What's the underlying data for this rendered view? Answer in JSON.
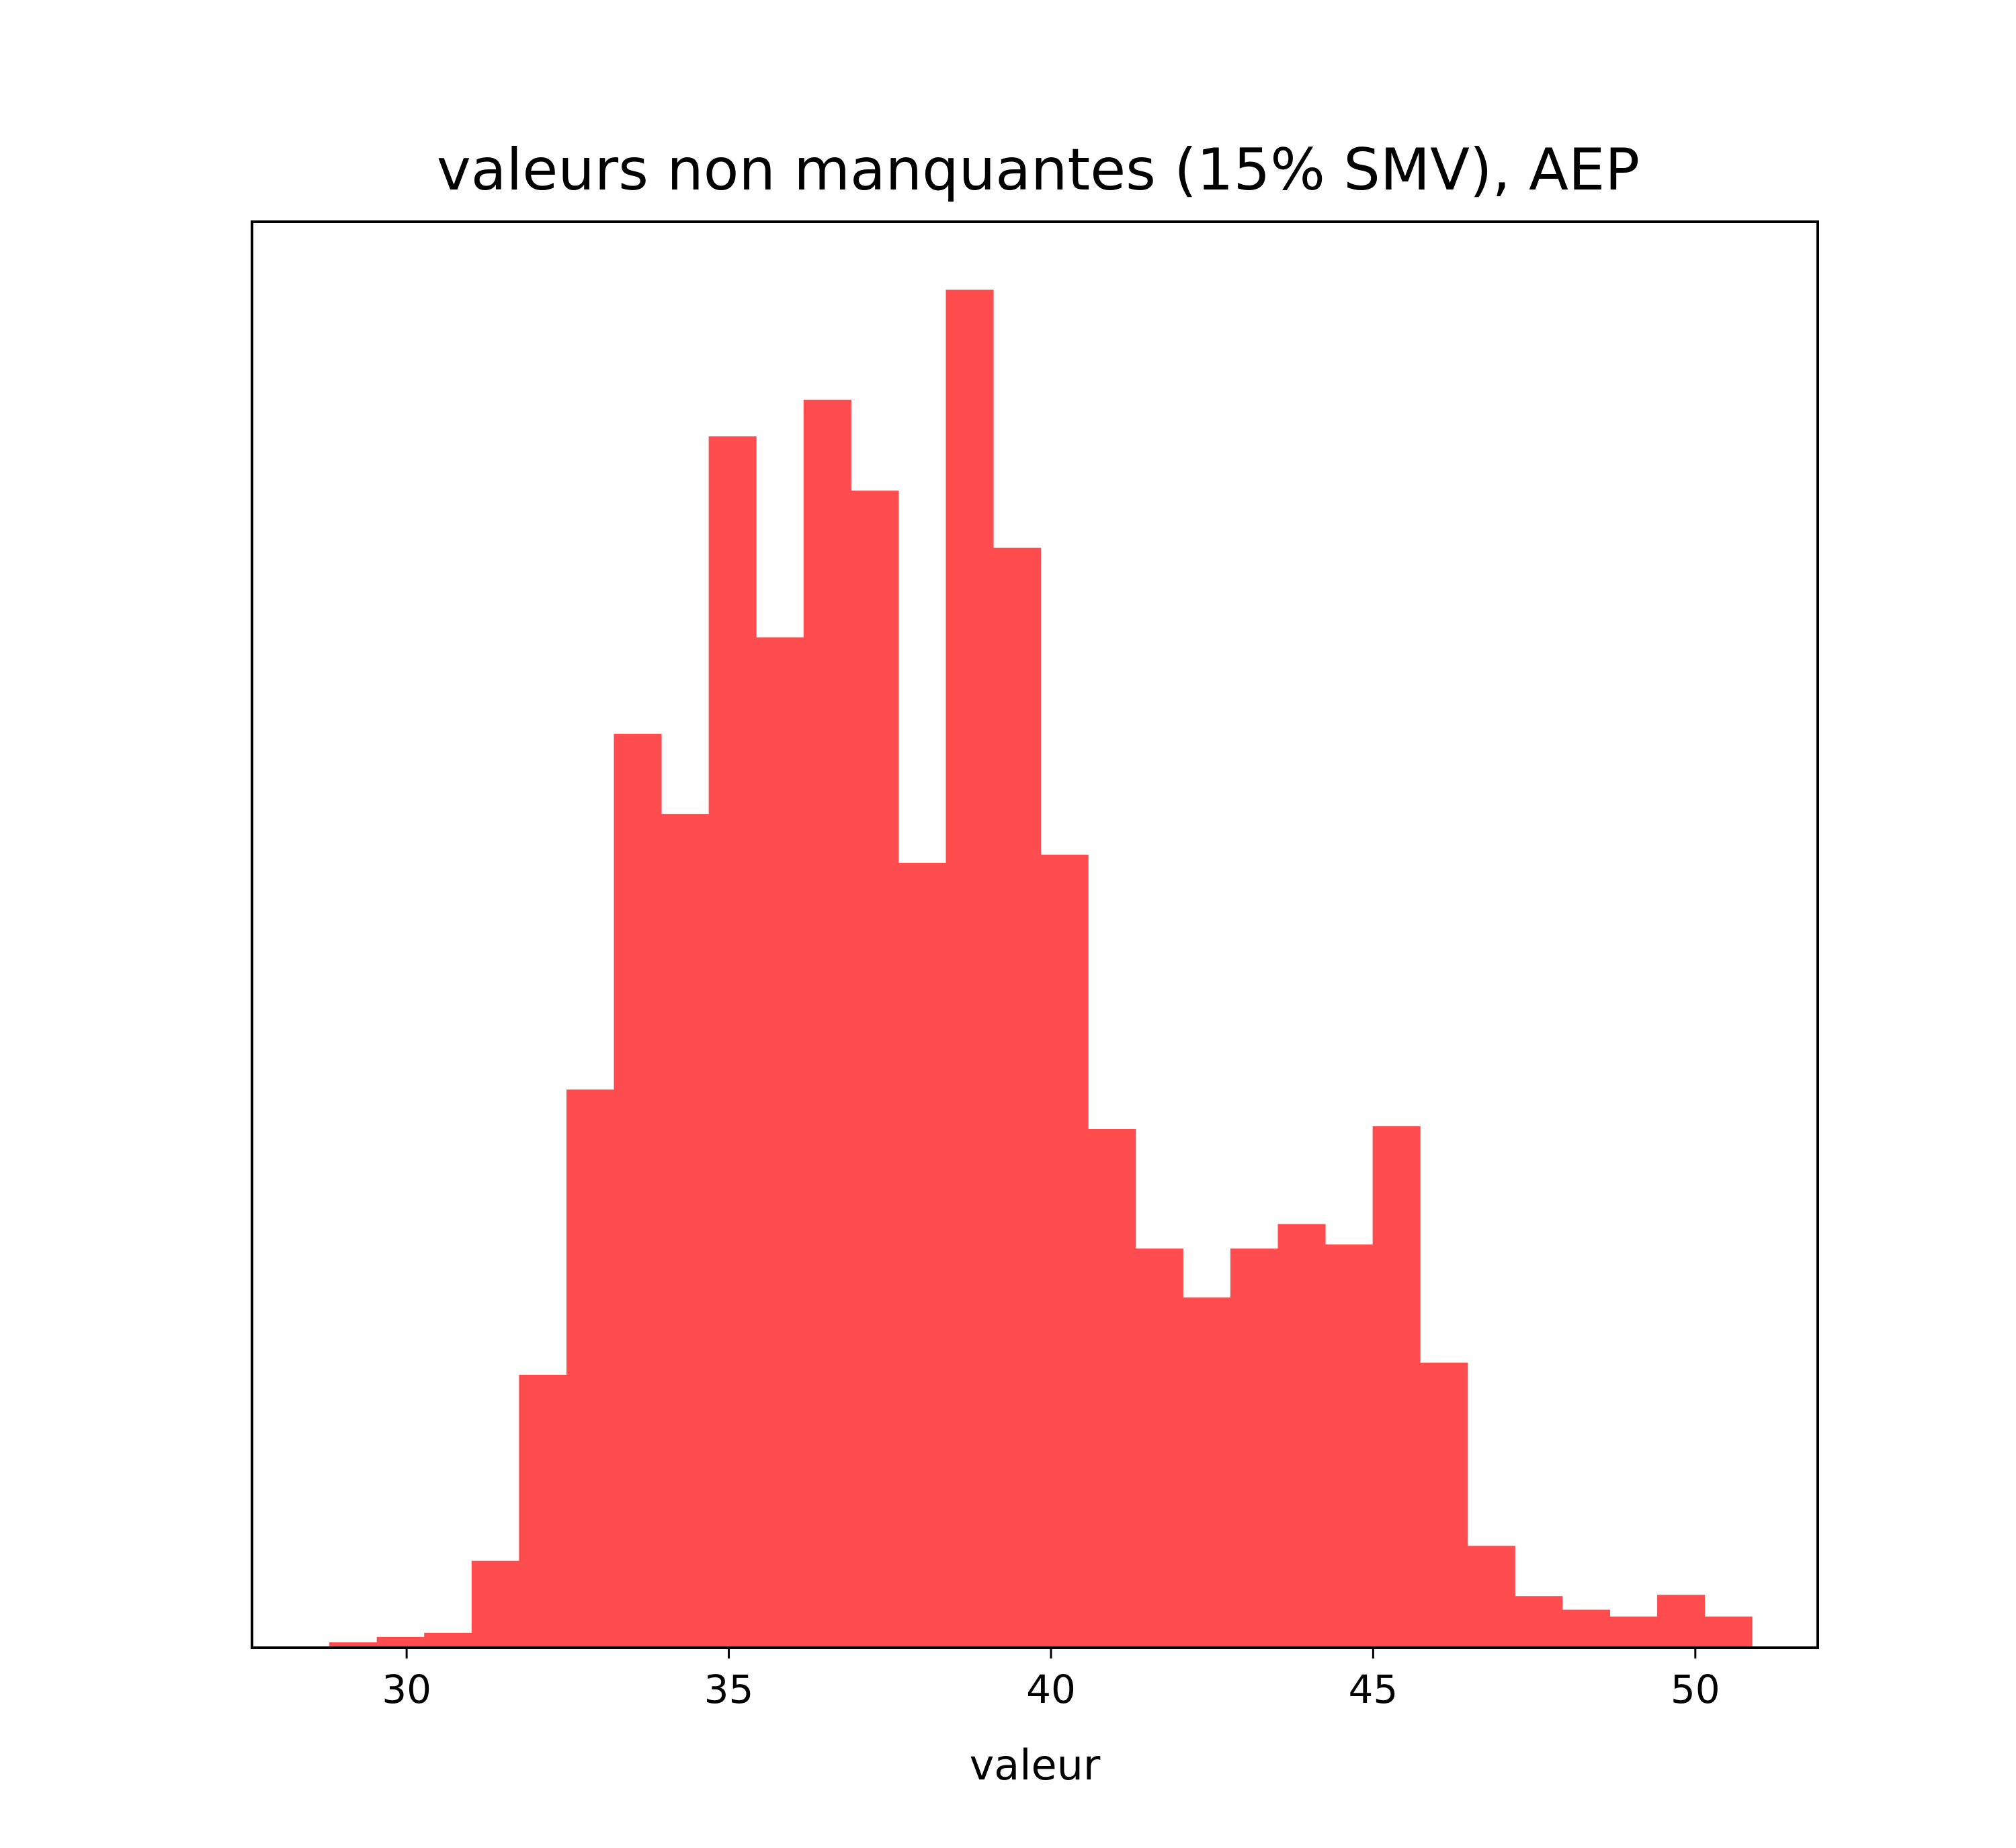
{
  "chart_data": {
    "type": "bar",
    "title": "valeurs non manquantes (15% SMV), AEP",
    "xlabel": "valeur",
    "ylabel": "",
    "bar_color": "#ff4d4f",
    "xlim": [
      27.6,
      51.9
    ],
    "ylim": [
      0,
      1.05
    ],
    "xticks": [
      30,
      35,
      40,
      45,
      50
    ],
    "bin_width": 0.736,
    "bin_starts": [
      28.8,
      29.536,
      30.272,
      31.008,
      31.744,
      32.48,
      33.216,
      33.952,
      34.688,
      35.424,
      36.16,
      36.896,
      37.632,
      38.368,
      39.104,
      39.84,
      40.576,
      41.312,
      42.048,
      42.784,
      43.52,
      44.256,
      44.992,
      45.728,
      46.464,
      47.2,
      47.936,
      48.672,
      49.408,
      50.144
    ],
    "values": [
      0.004,
      0.008,
      0.011,
      0.064,
      0.201,
      0.411,
      0.673,
      0.614,
      0.892,
      0.744,
      0.919,
      0.852,
      0.578,
      1.0,
      0.81,
      0.584,
      0.382,
      0.294,
      0.258,
      0.294,
      0.312,
      0.297,
      0.384,
      0.21,
      0.075,
      0.038,
      0.028,
      0.023,
      0.039,
      0.023
    ]
  }
}
